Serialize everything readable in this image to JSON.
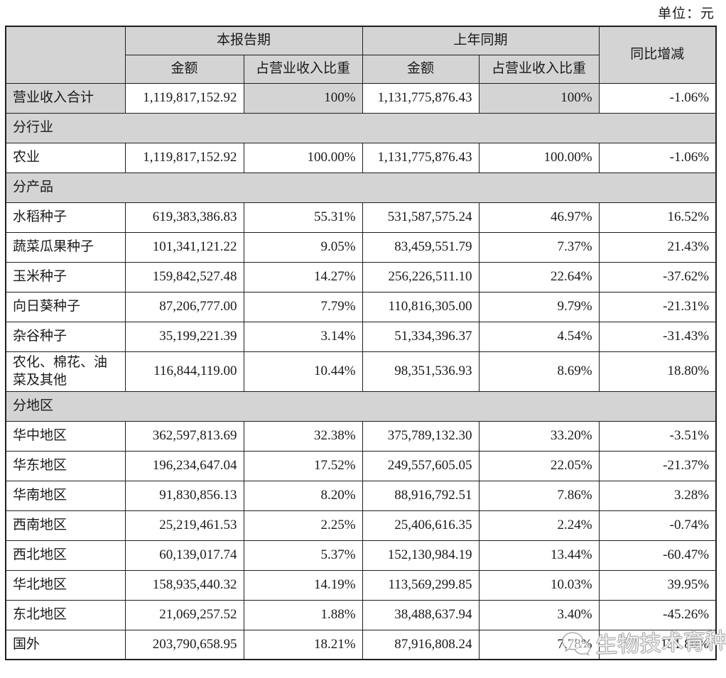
{
  "unit_label": "单位：元",
  "colors": {
    "header_bg": "#d4d4d4",
    "border": "#1f1f1f",
    "watermark_gray": "#9e9e9e"
  },
  "watermark": {
    "icon": "wechat-chat-bubbles-icon",
    "text": "生物技术育种"
  },
  "table": {
    "header": {
      "current_period": "本报告期",
      "prior_period": "上年同期",
      "yoy": "同比增减",
      "amount": "金额",
      "proportion": "占营业收入比重"
    },
    "rows": [
      {
        "type": "data",
        "shaded": true,
        "label": "营业收入合计",
        "cells": [
          "1,119,817,152.92",
          "100%",
          "1,131,775,876.43",
          "100%",
          "-1.06%"
        ]
      },
      {
        "type": "section",
        "label": "分行业"
      },
      {
        "type": "data",
        "label": "农业",
        "cells": [
          "1,119,817,152.92",
          "100.00%",
          "1,131,775,876.43",
          "100.00%",
          "-1.06%"
        ]
      },
      {
        "type": "section",
        "label": "分产品"
      },
      {
        "type": "data",
        "label": "水稻种子",
        "cells": [
          "619,383,386.83",
          "55.31%",
          "531,587,575.24",
          "46.97%",
          "16.52%"
        ]
      },
      {
        "type": "data",
        "label": "蔬菜瓜果种子",
        "cells": [
          "101,341,121.22",
          "9.05%",
          "83,459,551.79",
          "7.37%",
          "21.43%"
        ]
      },
      {
        "type": "data",
        "label": "玉米种子",
        "cells": [
          "159,842,527.48",
          "14.27%",
          "256,226,511.10",
          "22.64%",
          "-37.62%"
        ]
      },
      {
        "type": "data",
        "label": "向日葵种子",
        "cells": [
          "87,206,777.00",
          "7.79%",
          "110,816,305.00",
          "9.79%",
          "-21.31%"
        ]
      },
      {
        "type": "data",
        "label": "杂谷种子",
        "cells": [
          "35,199,221.39",
          "3.14%",
          "51,334,396.37",
          "4.54%",
          "-31.43%"
        ]
      },
      {
        "type": "data",
        "label": "农化、棉花、油菜及其他",
        "cells": [
          "116,844,119.00",
          "10.44%",
          "98,351,536.93",
          "8.69%",
          "18.80%"
        ]
      },
      {
        "type": "section",
        "label": "分地区"
      },
      {
        "type": "data",
        "label": "华中地区",
        "cells": [
          "362,597,813.69",
          "32.38%",
          "375,789,132.30",
          "33.20%",
          "-3.51%"
        ]
      },
      {
        "type": "data",
        "label": "华东地区",
        "cells": [
          "196,234,647.04",
          "17.52%",
          "249,557,605.05",
          "22.05%",
          "-21.37%"
        ]
      },
      {
        "type": "data",
        "label": "华南地区",
        "cells": [
          "91,830,856.13",
          "8.20%",
          "88,916,792.51",
          "7.86%",
          "3.28%"
        ]
      },
      {
        "type": "data",
        "label": "西南地区",
        "cells": [
          "25,219,461.53",
          "2.25%",
          "25,406,616.35",
          "2.24%",
          "-0.74%"
        ]
      },
      {
        "type": "data",
        "label": "西北地区",
        "cells": [
          "60,139,017.74",
          "5.37%",
          "152,130,984.19",
          "13.44%",
          "-60.47%"
        ]
      },
      {
        "type": "data",
        "label": "华北地区",
        "cells": [
          "158,935,440.32",
          "14.19%",
          "113,569,299.85",
          "10.03%",
          "39.95%"
        ]
      },
      {
        "type": "data",
        "label": "东北地区",
        "cells": [
          "21,069,257.52",
          "1.88%",
          "38,488,637.94",
          "3.40%",
          "-45.26%"
        ]
      },
      {
        "type": "data",
        "label": "国外",
        "cells": [
          "203,790,658.95",
          "18.21%",
          "87,916,808.24",
          "7.78%",
          "131.80%"
        ]
      }
    ]
  }
}
